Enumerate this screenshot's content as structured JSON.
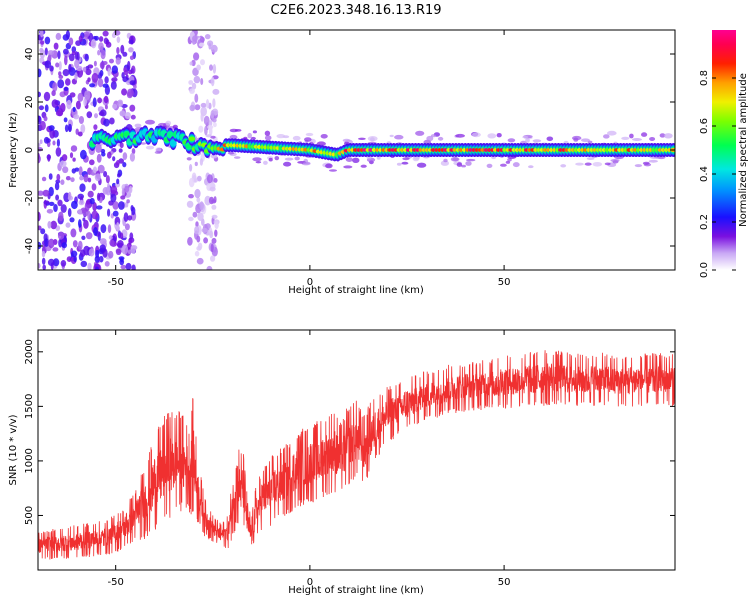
{
  "figure": {
    "title": "C2E6.2023.348.16.13.R19"
  },
  "chart_data": [
    {
      "type": "heatmap",
      "title": "C2E6.2023.348.16.13.R19",
      "xlabel": "Height of straight line (km)",
      "ylabel": "Frequency (Hz)",
      "xlim": [
        -70,
        94
      ],
      "ylim": [
        -50,
        50
      ],
      "xticks": [
        -50,
        0,
        50
      ],
      "yticks": [
        -40,
        -20,
        0,
        20,
        40
      ],
      "grid": false,
      "colorbar": {
        "label": "Normalized spectral amplitude",
        "range": [
          0,
          1
        ],
        "ticks": [
          0.0,
          0.2,
          0.4,
          0.6,
          0.8
        ],
        "colors": [
          "#ffffff",
          "#6a00d8",
          "#0000ff",
          "#00c8ff",
          "#00ff60",
          "#c8ff00",
          "#ffb000",
          "#ff0000",
          "#ff0080"
        ]
      },
      "dominant_ridge": {
        "x": [
          -56,
          -48,
          -40,
          -32,
          -28,
          -24,
          -20,
          -10,
          0,
          7,
          10,
          20,
          30,
          40,
          50,
          60,
          70,
          80,
          94
        ],
        "freq_hz": [
          4,
          5,
          6,
          4,
          1,
          2,
          2,
          1,
          0,
          -2,
          0,
          0,
          0,
          0,
          0,
          0,
          0,
          0,
          0
        ],
        "amplitude": [
          0.5,
          0.55,
          0.5,
          0.55,
          0.6,
          0.75,
          0.8,
          0.65,
          0.8,
          0.7,
          0.9,
          0.9,
          0.9,
          0.9,
          0.85,
          0.85,
          0.8,
          0.8,
          0.75
        ]
      },
      "scatter_regions": [
        {
          "x_range": [
            -70,
            -45
          ],
          "freq_range": [
            -50,
            50
          ],
          "amplitude": 0.15
        },
        {
          "x_range": [
            -31,
            -24
          ],
          "freq_range": [
            -50,
            50
          ],
          "amplitude": 0.08
        }
      ]
    },
    {
      "type": "line",
      "xlabel": "Height of straight line (km)",
      "ylabel": "SNR (10 * v/v)",
      "xlim": [
        -70,
        94
      ],
      "ylim": [
        0,
        2200
      ],
      "xticks": [
        -50,
        0,
        50
      ],
      "yticks": [
        500,
        1000,
        1500,
        2000
      ],
      "grid": false,
      "color": "#f03030",
      "series": [
        {
          "x": [
            -70,
            -60,
            -52,
            -48,
            -45,
            -42,
            -40,
            -37,
            -35,
            -33,
            -31,
            -30,
            -29,
            -27,
            -25,
            -23,
            -21,
            -19,
            -17,
            -16,
            -15,
            -14,
            -12,
            -10,
            -8,
            -6,
            -4,
            -2,
            0,
            2,
            4,
            6,
            8,
            10,
            12,
            14,
            16,
            18,
            20,
            25,
            30,
            35,
            40,
            45,
            50,
            55,
            60,
            65,
            70,
            75,
            80,
            85,
            90,
            94
          ],
          "y": [
            220,
            260,
            300,
            380,
            500,
            650,
            800,
            950,
            1000,
            1000,
            920,
            1050,
            750,
            480,
            380,
            320,
            350,
            800,
            720,
            420,
            320,
            520,
            680,
            720,
            780,
            820,
            900,
            950,
            970,
            1000,
            1050,
            1100,
            1020,
            1150,
            1200,
            1100,
            1250,
            1350,
            1420,
            1520,
            1600,
            1650,
            1680,
            1700,
            1720,
            1740,
            1760,
            1760,
            1740,
            1750,
            1730,
            1740,
            1750,
            1740
          ],
          "noise": [
            120,
            140,
            150,
            180,
            220,
            330,
            400,
            450,
            450,
            420,
            360,
            520,
            300,
            160,
            120,
            100,
            140,
            380,
            320,
            200,
            160,
            220,
            260,
            300,
            300,
            310,
            320,
            330,
            330,
            340,
            340,
            360,
            300,
            350,
            330,
            300,
            300,
            260,
            240,
            220,
            210,
            210,
            210,
            210,
            220,
            230,
            240,
            230,
            220,
            220,
            220,
            220,
            220,
            220
          ]
        }
      ]
    }
  ]
}
